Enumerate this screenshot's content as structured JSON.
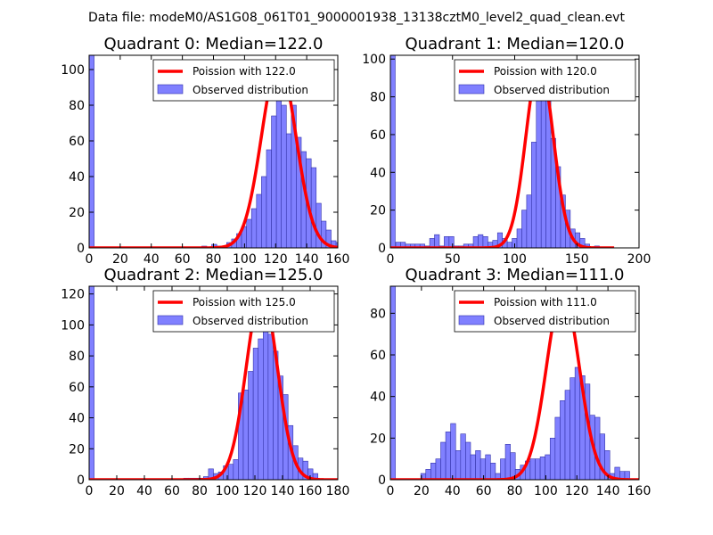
{
  "suptitle": "Data file: modeM0/AS1G08_061T01_9000001938_13138cztM0_level2_quad_clean.evt",
  "colors": {
    "hist_fill": "#8080ff",
    "hist_edge": "#3333aa",
    "curve": "#ff0000"
  },
  "chart_data": [
    {
      "type": "bar",
      "title": "Quadrant 0: Median=122.0",
      "legend": {
        "curve": "Poission with 122.0",
        "hist": "Observed distribution",
        "placement": "top-right"
      },
      "xlim": [
        0,
        160
      ],
      "ylim": [
        0,
        108
      ],
      "xticks": [
        0,
        20,
        40,
        60,
        80,
        100,
        120,
        140,
        160
      ],
      "yticks": [
        0,
        20,
        40,
        60,
        80,
        100
      ],
      "bin_width": 3.2,
      "bins": [
        [
          0,
          108
        ],
        [
          72.5,
          1
        ],
        [
          78.9,
          2
        ],
        [
          82.1,
          1
        ],
        [
          85.3,
          1
        ],
        [
          88.5,
          3
        ],
        [
          91.7,
          5
        ],
        [
          94.9,
          8
        ],
        [
          98.1,
          12
        ],
        [
          101.3,
          16
        ],
        [
          104.5,
          22
        ],
        [
          107.7,
          30
        ],
        [
          110.9,
          40
        ],
        [
          114.1,
          55
        ],
        [
          117.3,
          74
        ],
        [
          120.5,
          85
        ],
        [
          123.7,
          80
        ],
        [
          126.9,
          64
        ],
        [
          130.1,
          80
        ],
        [
          133.3,
          62
        ],
        [
          136.5,
          54
        ],
        [
          139.7,
          50
        ],
        [
          142.9,
          45
        ],
        [
          146.1,
          25
        ],
        [
          149.3,
          15
        ],
        [
          152.5,
          10
        ],
        [
          155.7,
          4
        ],
        [
          158.9,
          3
        ]
      ],
      "poisson": {
        "lambda": 122.0,
        "amplitude": 104
      }
    },
    {
      "type": "bar",
      "title": "Quadrant 1: Median=120.0",
      "legend": {
        "curve": "Poission with 120.0",
        "hist": "Observed distribution",
        "placement": "top-right"
      },
      "xlim": [
        0,
        200
      ],
      "ylim": [
        0,
        102
      ],
      "xticks": [
        0,
        50,
        100,
        150,
        200
      ],
      "yticks": [
        0,
        20,
        40,
        60,
        80,
        100
      ],
      "bin_width": 3.9,
      "bins": [
        [
          0,
          102
        ],
        [
          4.3,
          3
        ],
        [
          8.2,
          3
        ],
        [
          12.1,
          2
        ],
        [
          16,
          2
        ],
        [
          19.9,
          2
        ],
        [
          23.8,
          2
        ],
        [
          27.7,
          1
        ],
        [
          31.6,
          5
        ],
        [
          35.5,
          7
        ],
        [
          39.4,
          1
        ],
        [
          43.3,
          6
        ],
        [
          47.2,
          6
        ],
        [
          51.1,
          1
        ],
        [
          55,
          1
        ],
        [
          58.9,
          2
        ],
        [
          62.8,
          2
        ],
        [
          66.7,
          6
        ],
        [
          70.6,
          7
        ],
        [
          74.5,
          6
        ],
        [
          78.4,
          3
        ],
        [
          82.3,
          4
        ],
        [
          86.2,
          8
        ],
        [
          90.1,
          5
        ],
        [
          94,
          3
        ],
        [
          97.9,
          5
        ],
        [
          101.8,
          10
        ],
        [
          105.7,
          20
        ],
        [
          109.6,
          28
        ],
        [
          113.5,
          56
        ],
        [
          117.4,
          80
        ],
        [
          121.3,
          87
        ],
        [
          125.2,
          78
        ],
        [
          129.1,
          58
        ],
        [
          133,
          43
        ],
        [
          136.9,
          28
        ],
        [
          140.8,
          20
        ],
        [
          144.7,
          10
        ],
        [
          148.6,
          8
        ],
        [
          152.5,
          5
        ],
        [
          156.4,
          2
        ],
        [
          164.2,
          1
        ]
      ],
      "poisson": {
        "lambda": 120.0,
        "amplitude": 98,
        "xmax": 180
      }
    },
    {
      "type": "bar",
      "title": "Quadrant 2: Median=125.0",
      "legend": {
        "curve": "Poission with 125.0",
        "hist": "Observed distribution",
        "placement": "top-right"
      },
      "xlim": [
        0,
        180
      ],
      "ylim": [
        0,
        125
      ],
      "xticks": [
        0,
        20,
        40,
        60,
        80,
        100,
        120,
        140,
        160,
        180
      ],
      "yticks": [
        0,
        20,
        40,
        60,
        80,
        100,
        120
      ],
      "bin_width": 3.6,
      "bins": [
        [
          0,
          125
        ],
        [
          68.4,
          1
        ],
        [
          72,
          1
        ],
        [
          75.6,
          1
        ],
        [
          79.2,
          1
        ],
        [
          82.8,
          2
        ],
        [
          86.4,
          7
        ],
        [
          90,
          4
        ],
        [
          93.6,
          5
        ],
        [
          97.2,
          9
        ],
        [
          100.8,
          10
        ],
        [
          104.4,
          13
        ],
        [
          108,
          56
        ],
        [
          111.6,
          58
        ],
        [
          115.2,
          70
        ],
        [
          118.8,
          85
        ],
        [
          122.4,
          91
        ],
        [
          126,
          99
        ],
        [
          129.6,
          94
        ],
        [
          133.2,
          83
        ],
        [
          136.8,
          67
        ],
        [
          140.4,
          55
        ],
        [
          144,
          35
        ],
        [
          147.6,
          22
        ],
        [
          151.2,
          14
        ],
        [
          154.8,
          12
        ],
        [
          158.4,
          7
        ],
        [
          162,
          4
        ]
      ],
      "poisson": {
        "lambda": 125.0,
        "amplitude": 121
      }
    },
    {
      "type": "bar",
      "title": "Quadrant 3: Median=111.0",
      "legend": {
        "curve": "Poission with 111.0",
        "hist": "Observed distribution",
        "placement": "top-right"
      },
      "xlim": [
        0,
        160
      ],
      "ylim": [
        0,
        93
      ],
      "xticks": [
        0,
        20,
        40,
        60,
        80,
        100,
        120,
        140,
        160
      ],
      "yticks": [
        0,
        20,
        40,
        60,
        80
      ],
      "bin_width": 3.2,
      "bins": [
        [
          0,
          93
        ],
        [
          19.6,
          3
        ],
        [
          22.8,
          5
        ],
        [
          26,
          8
        ],
        [
          29.2,
          10
        ],
        [
          32.4,
          18
        ],
        [
          35.6,
          23
        ],
        [
          38.8,
          27
        ],
        [
          42,
          14
        ],
        [
          45.2,
          22
        ],
        [
          48.4,
          18
        ],
        [
          51.6,
          12
        ],
        [
          54.8,
          14
        ],
        [
          58,
          10
        ],
        [
          61.2,
          12
        ],
        [
          64.4,
          8
        ],
        [
          67.6,
          3
        ],
        [
          70.8,
          10
        ],
        [
          74,
          17
        ],
        [
          77.2,
          13
        ],
        [
          80.4,
          5
        ],
        [
          83.6,
          7
        ],
        [
          86.8,
          9
        ],
        [
          90,
          10
        ],
        [
          93.2,
          10
        ],
        [
          96.4,
          11
        ],
        [
          99.6,
          12
        ],
        [
          102.8,
          20
        ],
        [
          106,
          30
        ],
        [
          109.2,
          38
        ],
        [
          112.4,
          43
        ],
        [
          115.6,
          49
        ],
        [
          118.8,
          54
        ],
        [
          122,
          50
        ],
        [
          125.2,
          46
        ],
        [
          128.4,
          31
        ],
        [
          131.6,
          30
        ],
        [
          134.8,
          22
        ],
        [
          138,
          14
        ],
        [
          141.2,
          3
        ],
        [
          144.4,
          6
        ],
        [
          147.6,
          4
        ],
        [
          150.8,
          4
        ]
      ],
      "poisson": {
        "lambda": 111.0,
        "amplitude": 90
      }
    }
  ]
}
